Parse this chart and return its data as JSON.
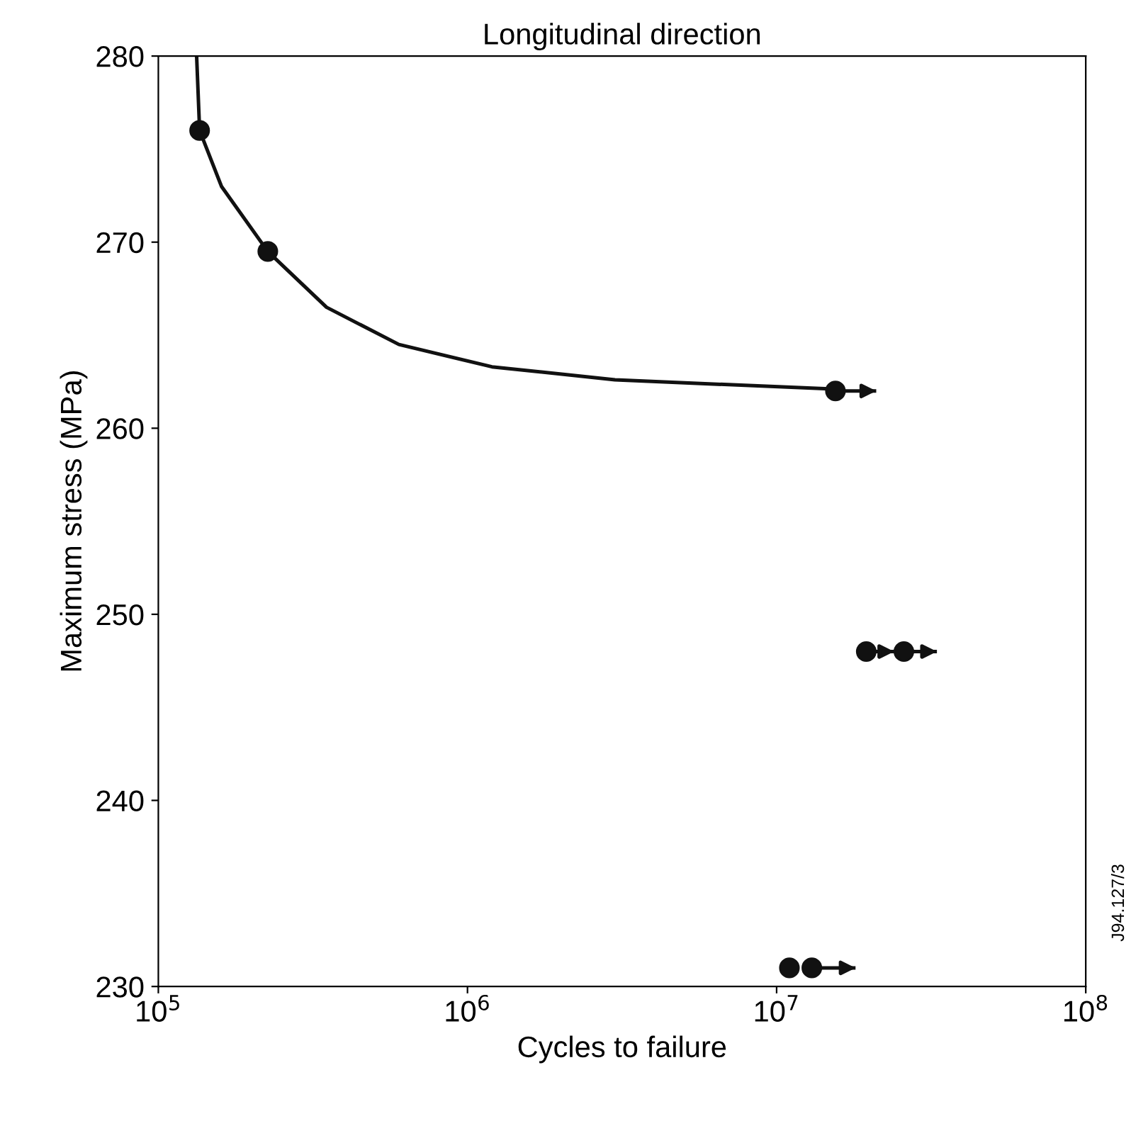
{
  "chart_data": {
    "type": "scatter",
    "title": "Longitudinal direction",
    "xlabel": "Cycles to failure",
    "ylabel": "Maximum stress (MPa)",
    "log": "x",
    "xlim": [
      100000,
      100000000
    ],
    "ylim": [
      230,
      280
    ],
    "xticks": [
      {
        "value": 100000,
        "label": "10$^{5}$"
      },
      {
        "value": 1000000,
        "label": "10$^{6}$"
      },
      {
        "value": 10000000,
        "label": "10$^{7}$"
      },
      {
        "value": 100000000,
        "label": "10$^{8}$"
      }
    ],
    "yticks": [
      230,
      240,
      250,
      260,
      270,
      280
    ],
    "grid": false,
    "legend": false,
    "series": [
      {
        "type": "line",
        "color": "#111111",
        "marker": "none",
        "line_style": "solid",
        "x": [
          133000,
          136000,
          160000,
          226000,
          350000,
          600000,
          1200000,
          3000000,
          15500000
        ],
        "values": [
          280,
          276,
          273,
          269.5,
          266.5,
          264.5,
          263.3,
          262.6,
          262.1
        ]
      },
      {
        "color": "#111111",
        "marker": "circle",
        "x": [
          136000,
          226000,
          15500000,
          19500000,
          25800000,
          11000000,
          13000000
        ],
        "values": [
          276,
          269.5,
          262,
          248,
          248,
          231,
          231
        ],
        "xerrors": [
          null,
          null,
          [
            15500000,
            21000000
          ],
          [
            19500000,
            24000000
          ],
          [
            25800000,
            33000000
          ],
          null,
          [
            13000000,
            18000000
          ]
        ]
      }
    ],
    "annotations": [
      "J94.127/3"
    ]
  }
}
